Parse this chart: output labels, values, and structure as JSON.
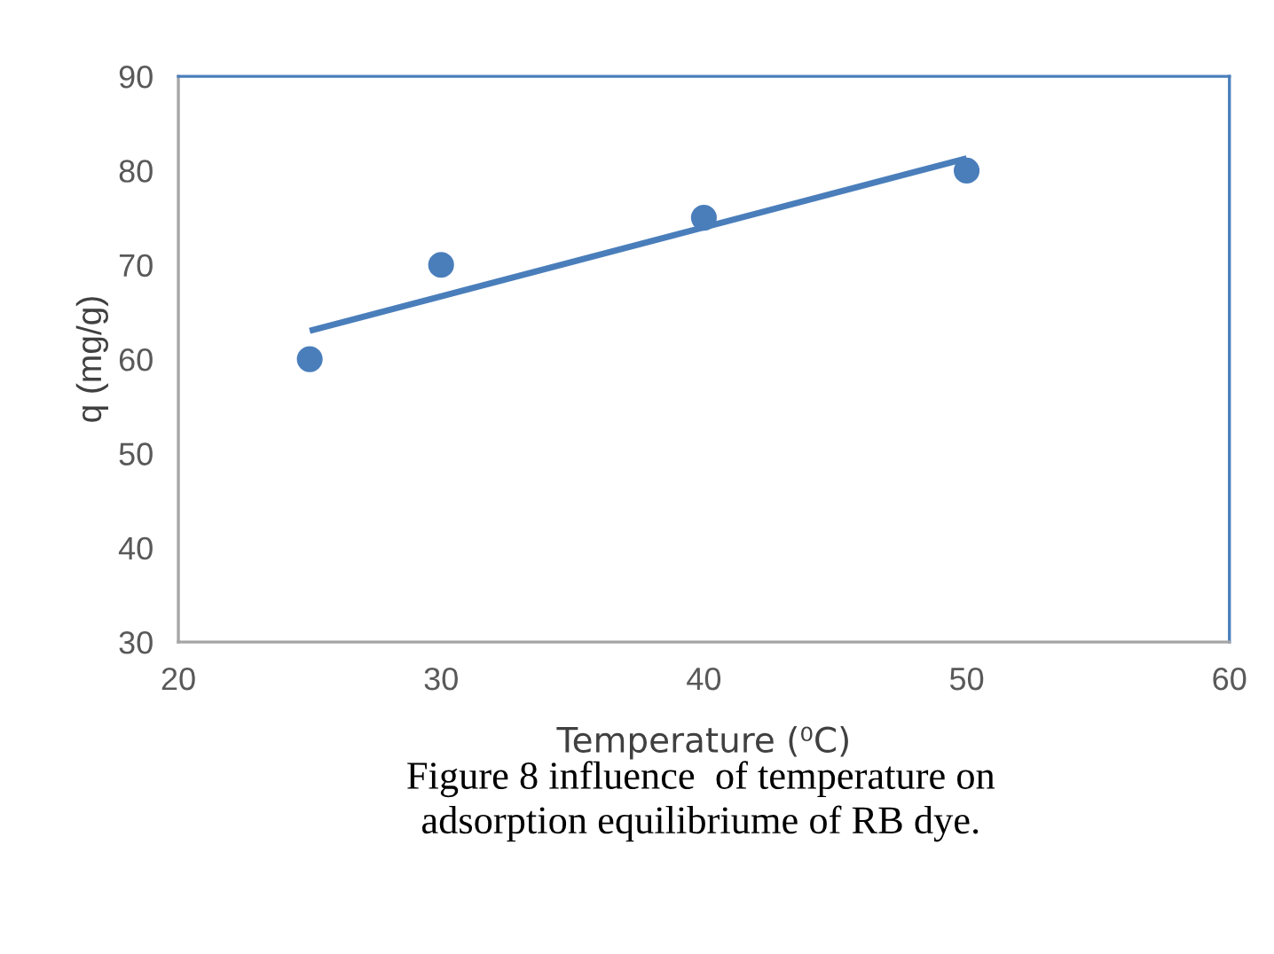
{
  "chart_data": {
    "type": "scatter",
    "xlabel": "Temperature (⁰C)",
    "ylabel": "q (mg/g)",
    "series": [
      {
        "color": "#4a7ebb",
        "x": [
          25,
          30,
          40,
          50
        ],
        "values": [
          60,
          70,
          75,
          80
        ],
        "marker": "circle"
      },
      {
        "type": "line",
        "color": "#4a7ebb",
        "x": [
          25,
          50
        ],
        "values": [
          63.0,
          81.3
        ],
        "line_style": "solid"
      }
    ],
    "xlim": [
      20,
      60
    ],
    "ylim": [
      30,
      90
    ],
    "xticks": [
      20,
      30,
      40,
      50,
      60
    ],
    "yticks": [
      30,
      40,
      50,
      60,
      70,
      80,
      90
    ],
    "grid": false,
    "legend": false,
    "annotations": [
      "Figure 8 influence  of temperature on\nadsorption equilibriume of RB dye."
    ]
  }
}
